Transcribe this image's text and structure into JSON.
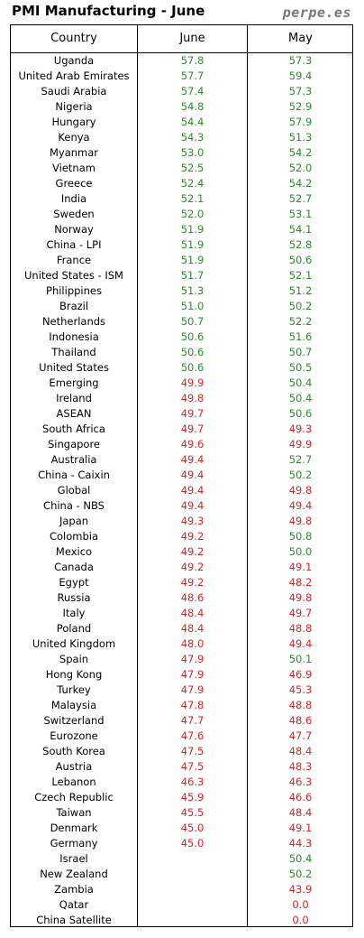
{
  "header": {
    "title": "PMI Manufacturing - June",
    "brand": "perpe.es"
  },
  "colors": {
    "above_50": "#2e8b2e",
    "below_50": "#e02020"
  },
  "chart_data": {
    "type": "table",
    "title": "PMI Manufacturing - June",
    "columns": [
      "Country",
      "June",
      "May"
    ],
    "rows": [
      [
        "Uganda",
        "57.8",
        "57.3"
      ],
      [
        "United Arab Emirates",
        "57.7",
        "59.4"
      ],
      [
        "Saudi Arabia",
        "57.4",
        "57.3"
      ],
      [
        "Nigeria",
        "54.8",
        "52.9"
      ],
      [
        "Hungary",
        "54.4",
        "57.9"
      ],
      [
        "Kenya",
        "54.3",
        "51.3"
      ],
      [
        "Myanmar",
        "53.0",
        "54.2"
      ],
      [
        "Vietnam",
        "52.5",
        "52.0"
      ],
      [
        "Greece",
        "52.4",
        "54.2"
      ],
      [
        "India",
        "52.1",
        "52.7"
      ],
      [
        "Sweden",
        "52.0",
        "53.1"
      ],
      [
        "Norway",
        "51.9",
        "54.1"
      ],
      [
        "China - LPI",
        "51.9",
        "52.8"
      ],
      [
        "France",
        "51.9",
        "50.6"
      ],
      [
        "United States - ISM",
        "51.7",
        "52.1"
      ],
      [
        "Philippines",
        "51.3",
        "51.2"
      ],
      [
        "Brazil",
        "51.0",
        "50.2"
      ],
      [
        "Netherlands",
        "50.7",
        "52.2"
      ],
      [
        "Indonesia",
        "50.6",
        "51.6"
      ],
      [
        "Thailand",
        "50.6",
        "50.7"
      ],
      [
        "United States",
        "50.6",
        "50.5"
      ],
      [
        "Emerging",
        "49.9",
        "50.4"
      ],
      [
        "Ireland",
        "49.8",
        "50.4"
      ],
      [
        "ASEAN",
        "49.7",
        "50.6"
      ],
      [
        "South Africa",
        "49.7",
        "49.3"
      ],
      [
        "Singapore",
        "49.6",
        "49.9"
      ],
      [
        "Australia",
        "49.4",
        "52.7"
      ],
      [
        "China - Caixin",
        "49.4",
        "50.2"
      ],
      [
        "Global",
        "49.4",
        "49.8"
      ],
      [
        "China - NBS",
        "49.4",
        "49.4"
      ],
      [
        "Japan",
        "49.3",
        "49.8"
      ],
      [
        "Colombia",
        "49.2",
        "50.8"
      ],
      [
        "Mexico",
        "49.2",
        "50.0"
      ],
      [
        "Canada",
        "49.2",
        "49.1"
      ],
      [
        "Egypt",
        "49.2",
        "48.2"
      ],
      [
        "Russia",
        "48.6",
        "49.8"
      ],
      [
        "Italy",
        "48.4",
        "49.7"
      ],
      [
        "Poland",
        "48.4",
        "48.8"
      ],
      [
        "United Kingdom",
        "48.0",
        "49.4"
      ],
      [
        "Spain",
        "47.9",
        "50.1"
      ],
      [
        "Hong Kong",
        "47.9",
        "46.9"
      ],
      [
        "Turkey",
        "47.9",
        "45.3"
      ],
      [
        "Malaysia",
        "47.8",
        "48.8"
      ],
      [
        "Switzerland",
        "47.7",
        "48.6"
      ],
      [
        "Eurozone",
        "47.6",
        "47.7"
      ],
      [
        "South Korea",
        "47.5",
        "48.4"
      ],
      [
        "Austria",
        "47.5",
        "48.3"
      ],
      [
        "Lebanon",
        "46.3",
        "46.3"
      ],
      [
        "Czech Republic",
        "45.9",
        "46.6"
      ],
      [
        "Taiwan",
        "45.5",
        "48.4"
      ],
      [
        "Denmark",
        "45.0",
        "49.1"
      ],
      [
        "Germany",
        "45.0",
        "44.3"
      ],
      [
        "Israel",
        "",
        "50.4"
      ],
      [
        "New Zealand",
        "",
        "50.2"
      ],
      [
        "Zambia",
        "",
        "43.9"
      ],
      [
        "Qatar",
        "",
        "0.0"
      ],
      [
        "China Satellite",
        "",
        "0.0"
      ]
    ]
  }
}
